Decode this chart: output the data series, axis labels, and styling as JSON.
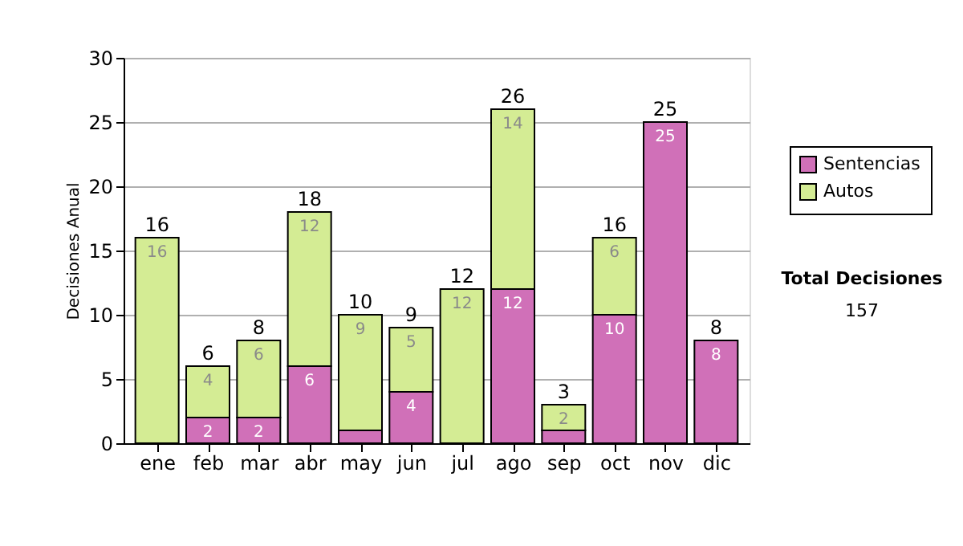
{
  "chart_data": {
    "type": "bar",
    "stacked": true,
    "ylabel": "Decisiones Anual",
    "categories": [
      "ene",
      "feb",
      "mar",
      "abr",
      "may",
      "jun",
      "jul",
      "ago",
      "sep",
      "oct",
      "nov",
      "dic"
    ],
    "series": [
      {
        "name": "Sentencias",
        "color": "#d070b8",
        "values": [
          null,
          2,
          2,
          6,
          1,
          4,
          null,
          12,
          1,
          10,
          25,
          8
        ],
        "value_labels": [
          null,
          "2",
          "2",
          "6",
          null,
          "4",
          null,
          "12",
          null,
          "10",
          "25",
          "8"
        ]
      },
      {
        "name": "Autos",
        "color": "#d4ec94",
        "values": [
          16,
          4,
          6,
          12,
          9,
          5,
          12,
          14,
          2,
          6,
          null,
          null
        ],
        "value_labels": [
          "16",
          "4",
          "6",
          "12",
          "9",
          "5",
          "12",
          "14",
          "2",
          "6",
          null,
          null
        ]
      }
    ],
    "totals": [
      "16",
      "6",
      "8",
      "18",
      "10",
      "9",
      "12",
      "26",
      "3",
      "16",
      "25",
      "8"
    ],
    "ylim": [
      0,
      30
    ],
    "yticks": [
      0,
      5,
      10,
      15,
      20,
      25,
      30
    ],
    "grid": "y",
    "legend": "right",
    "annotations": [
      "Total Decisiones",
      "157"
    ]
  }
}
